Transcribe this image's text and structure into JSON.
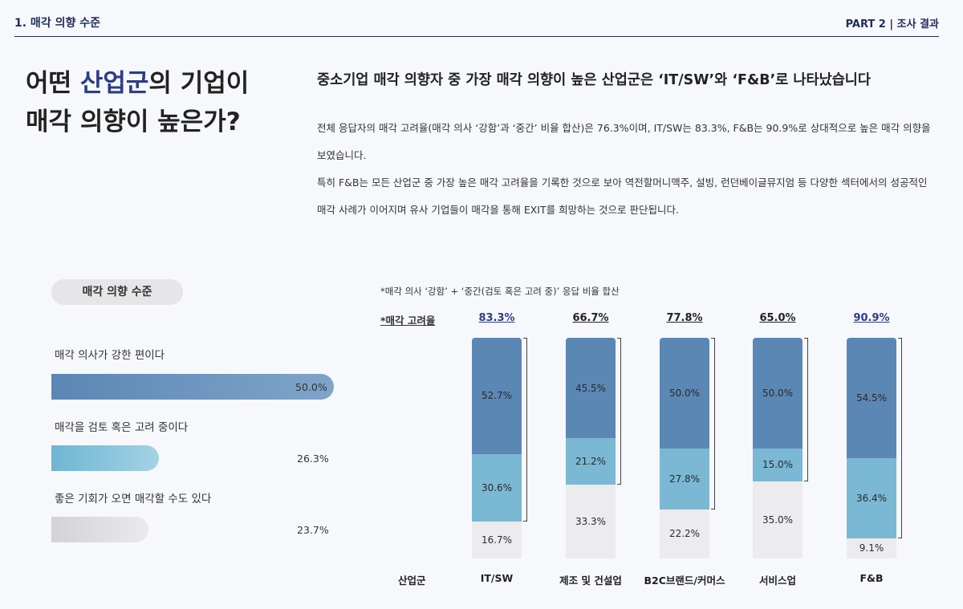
{
  "header": {
    "section": "1. 매각 의향 수준",
    "part": "PART 2 | 조사 결과"
  },
  "headline": {
    "line1_pre": "어떤 ",
    "line1_hl": "산업군",
    "line1_post": "의 기업이",
    "line2": "매각 의향이 높은가?"
  },
  "summary": {
    "title": "중소기업 매각 의향자 중 가장 매각 의향이 높은 산업군은 ‘IT/SW’와 ‘F&B’로 나타났습니다",
    "para1": "전체 응답자의 매각 고려율(매각 의사 ‘강함’과 ‘중간’ 비율 합산)은 76.3%이며, IT/SW는 83.3%, F&B는 90.9%로 상대적으로 높은 매각 의향을 보였습니다.",
    "para2": "특히 F&B는 모든 산업군 중 가장 높은 매각 고려율을 기록한 것으로 보아 역전할머니맥주, 설빙, 런던베이글뮤지엄 등 다양한 섹터에서의 성공적인 매각 사례가 이어지며 유사 기업들이 매각을 통해 EXIT를 희망하는 것으로 판단됩니다."
  },
  "chart_data": [
    {
      "type": "bar",
      "orientation": "horizontal",
      "title": "매각 의향 수준",
      "categories": [
        "매각 의사가 강한 편이다",
        "매각을 검토 혹은 고려 중이다",
        "좋은 기회가 오면 매각할 수도 있다"
      ],
      "values": [
        50.0,
        26.3,
        23.7
      ],
      "value_labels": [
        "50.0%",
        "26.3%",
        "23.7%"
      ],
      "colors": [
        "#5b87b5",
        "#7dbfd8",
        "#d6d6d8"
      ]
    },
    {
      "type": "bar",
      "stacked": true,
      "note": "*매각 의사 ‘강함’ + ‘중간(검토 혹은 고려 중)’ 응답 비율 합산",
      "rate_title": "*매각 고려율",
      "xlabel": "산업군",
      "categories": [
        "IT/SW",
        "제조 및 건설업",
        "B2C브랜드/커머스",
        "서비스업",
        "F&B"
      ],
      "consideration_rate": [
        "83.3%",
        "66.7%",
        "77.8%",
        "65.0%",
        "90.9%"
      ],
      "rate_colors": [
        "#2c3e86",
        "#222222",
        "#222222",
        "#222222",
        "#2c3e86"
      ],
      "series": [
        {
          "values": [
            52.7,
            45.5,
            50.0,
            50.0,
            54.5
          ],
          "labels": [
            "52.7%",
            "45.5%",
            "50.0%",
            "50.0%",
            "54.5%"
          ],
          "color": "#5b87b5"
        },
        {
          "values": [
            30.6,
            21.2,
            27.8,
            15.0,
            36.4
          ],
          "labels": [
            "30.6%",
            "21.2%",
            "27.8%",
            "15.0%",
            "36.4%"
          ],
          "color": "#7ab8d4"
        },
        {
          "values": [
            16.7,
            33.3,
            22.2,
            35.0,
            9.1
          ],
          "labels": [
            "16.7%",
            "33.3%",
            "22.2%",
            "35.0%",
            "9.1%"
          ],
          "color": "#ececef"
        }
      ],
      "ylim": [
        0,
        100
      ]
    }
  ]
}
